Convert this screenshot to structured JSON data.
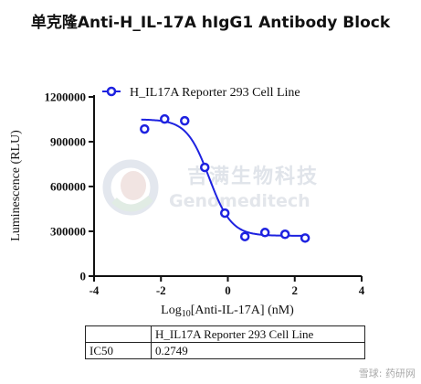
{
  "title": "单克隆Anti-H_IL-17A hIgG1 Antibody Block",
  "watermark": {
    "cn": "吉满生物科技",
    "en": "Genomeditech"
  },
  "chart_data": {
    "type": "scatter",
    "xlabel": "Log10[Anti-IL-17A] (nM)",
    "ylabel": "Luminescence (RLU)",
    "xlim": [
      -4,
      4
    ],
    "ylim": [
      0,
      1200000
    ],
    "x_ticks": [
      -4,
      -2,
      0,
      2,
      4
    ],
    "y_ticks": [
      0,
      300000,
      600000,
      900000,
      1200000
    ],
    "x_tick_labels": [
      "-4",
      "-2",
      "0",
      "2",
      "4"
    ],
    "y_tick_labels": [
      "0",
      "300000",
      "600000",
      "900000",
      "1200000"
    ],
    "grid": false,
    "legend": "top-left",
    "color": "#1e22e0",
    "series": [
      {
        "name": "H_IL17A Reporter 293 Cell Line",
        "points": [
          [
            -2.49,
            985000
          ],
          [
            -1.89,
            1052000
          ],
          [
            -1.29,
            1040000
          ],
          [
            -0.69,
            728000
          ],
          [
            -0.09,
            422000
          ],
          [
            0.51,
            265000
          ],
          [
            1.11,
            292000
          ],
          [
            1.71,
            280000
          ],
          [
            2.31,
            255000
          ]
        ],
        "fit": {
          "top": 1050000,
          "bottom": 270000,
          "log_ic50": -0.561,
          "hill": 1.3
        }
      }
    ]
  },
  "table": {
    "header": [
      "",
      "H_IL17A Reporter 293 Cell Line"
    ],
    "rows": [
      [
        "IC50",
        "0.2749"
      ]
    ]
  },
  "footer": "雪球: 药研网"
}
